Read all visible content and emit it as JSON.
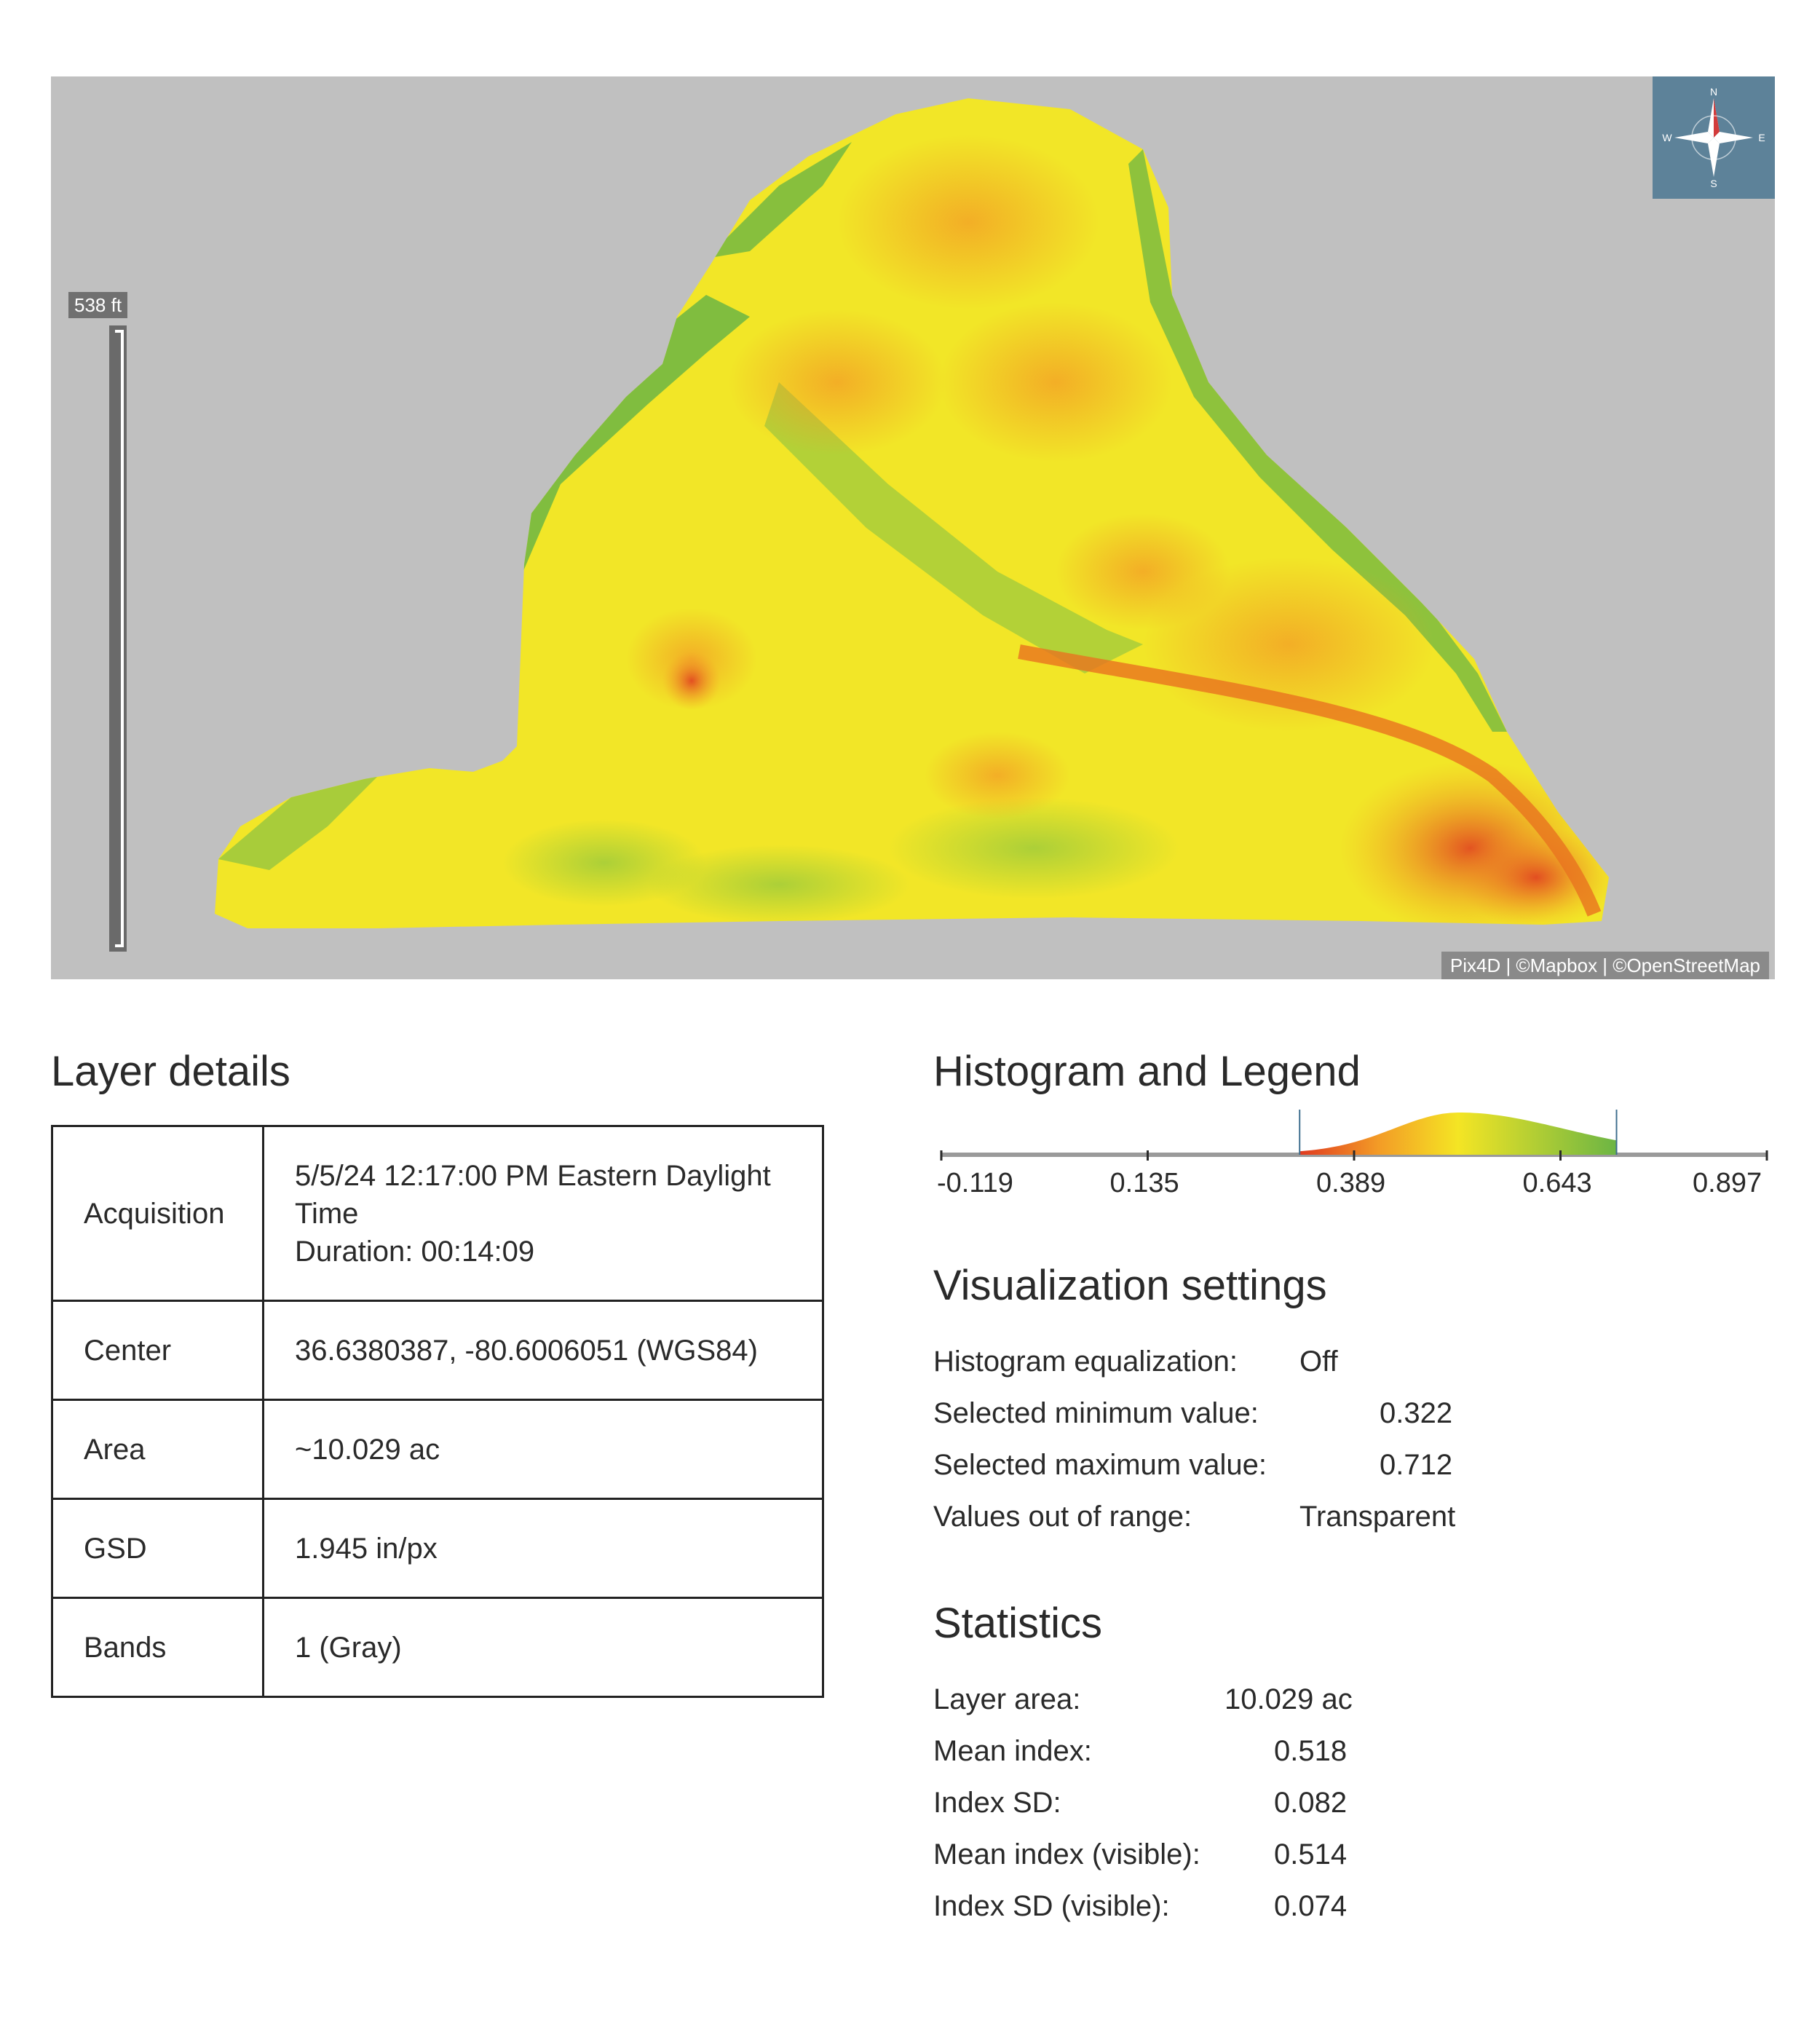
{
  "map": {
    "scale_label": "538 ft",
    "compass": {
      "n": "N",
      "s": "S",
      "e": "E",
      "w": "W"
    },
    "attribution": "Pix4D | ©Mapbox | ©OpenStreetMap",
    "colors": {
      "background": "#c0c0c0",
      "low": "#e03a20",
      "mid": "#f4e524",
      "high": "#6cb544"
    }
  },
  "layer_details": {
    "title": "Layer details",
    "rows": [
      {
        "key": "Acquisition",
        "lines": [
          "5/5/24 12:17:00 PM Eastern Daylight",
          "Time",
          "Duration: 00:14:09"
        ]
      },
      {
        "key": "Center",
        "lines": [
          "36.6380387, -80.6006051 (WGS84)"
        ]
      },
      {
        "key": "Area",
        "lines": [
          "~10.029 ac"
        ]
      },
      {
        "key": "GSD",
        "lines": [
          "1.945 in/px"
        ]
      },
      {
        "key": "Bands",
        "lines": [
          "1 (Gray)"
        ]
      }
    ]
  },
  "histogram": {
    "title": "Histogram and Legend",
    "ticks": [
      "-0.119",
      "0.135",
      "0.389",
      "0.643",
      "0.897"
    ],
    "range": [
      -0.119,
      0.897
    ],
    "selected_min": 0.322,
    "selected_max": 0.712,
    "mean": 0.518
  },
  "visualization": {
    "title": "Visualization settings",
    "rows": [
      {
        "label": "Histogram equalization:",
        "value": "Off"
      },
      {
        "label": "Selected minimum value:",
        "value": "0.322"
      },
      {
        "label": "Selected maximum value:",
        "value": "0.712"
      },
      {
        "label": "Values out of range:",
        "value": "Transparent"
      }
    ]
  },
  "statistics": {
    "title": "Statistics",
    "rows": [
      {
        "label": "Layer area:",
        "value": "10.029 ac"
      },
      {
        "label": "Mean index:",
        "value": "0.518"
      },
      {
        "label": "Index SD:",
        "value": "0.082"
      },
      {
        "label": "Mean index (visible):",
        "value": "0.514"
      },
      {
        "label": "Index SD (visible):",
        "value": "0.074"
      }
    ]
  }
}
